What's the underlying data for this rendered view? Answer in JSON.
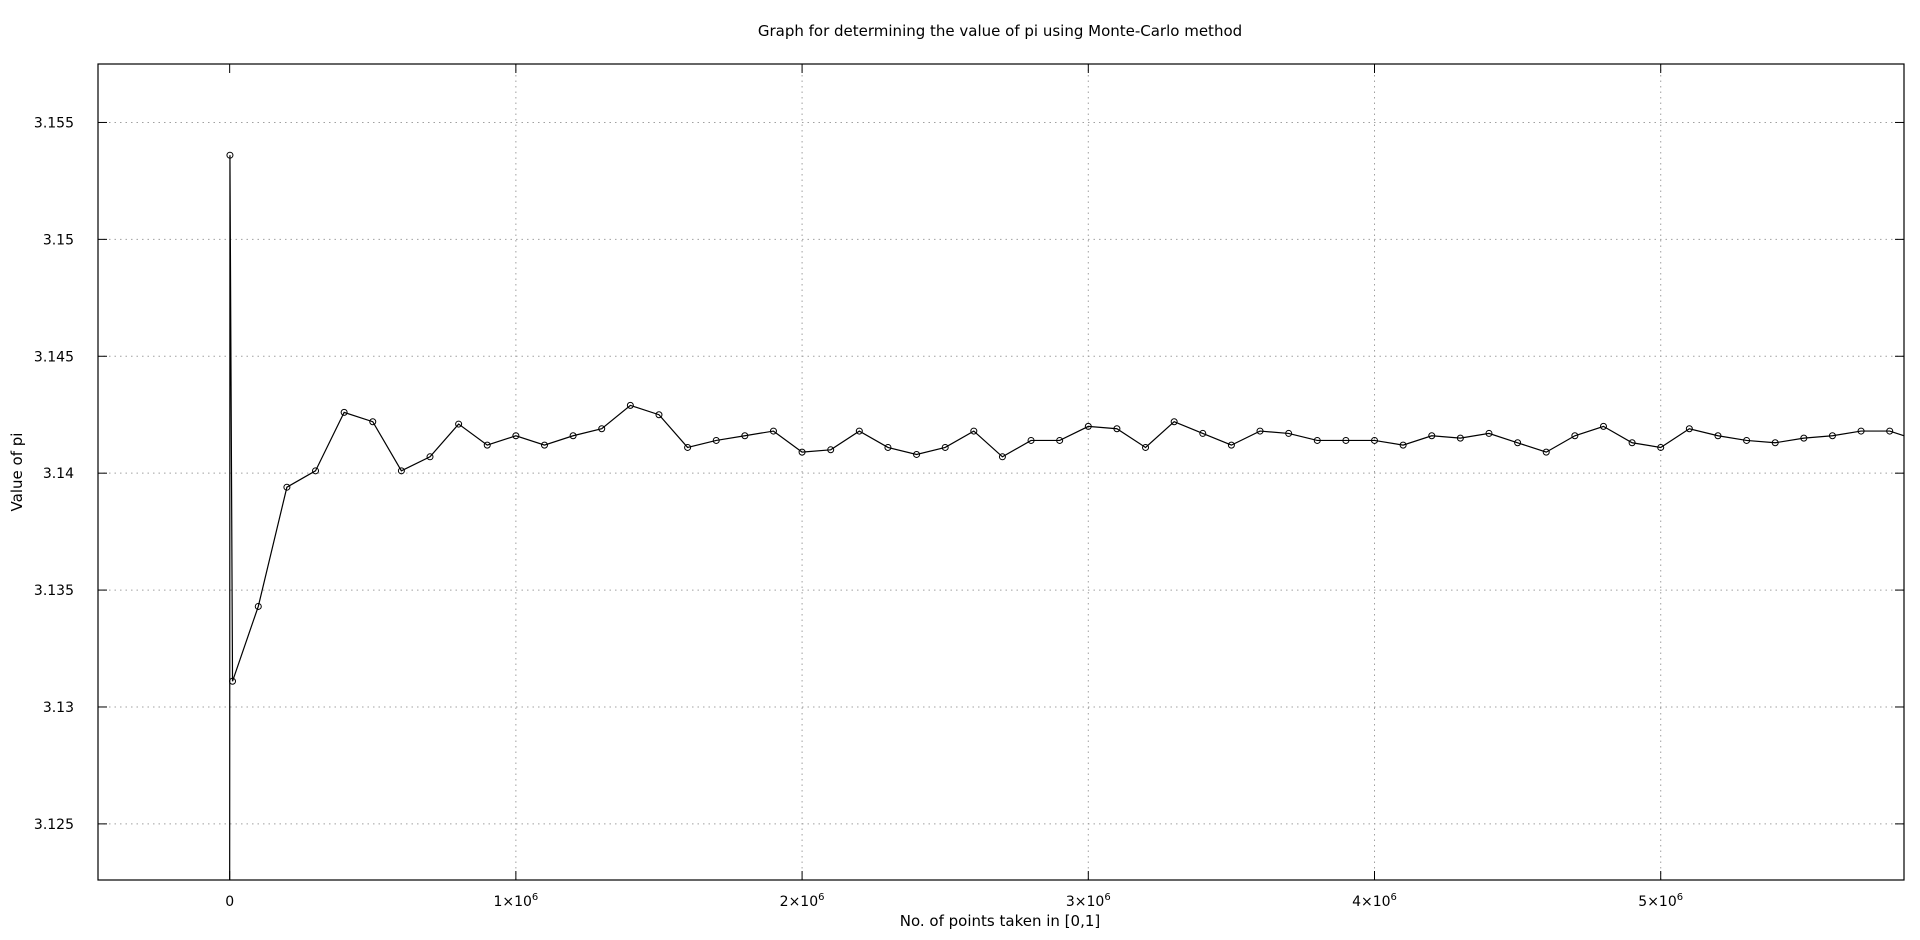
{
  "chart_data": {
    "type": "line",
    "title": "Graph for determining the value of pi using Monte-Carlo method",
    "xlabel": "No. of points taken in [0,1]",
    "ylabel": "Value of pi",
    "xlim": [
      -460000,
      5850000
    ],
    "ylim": [
      3.1226,
      3.1575
    ],
    "grid": true,
    "x_ticks": [
      {
        "value": 0,
        "label": "0"
      },
      {
        "value": 1000000,
        "label": "1×10^6"
      },
      {
        "value": 2000000,
        "label": "2×10^6"
      },
      {
        "value": 3000000,
        "label": "3×10^6"
      },
      {
        "value": 4000000,
        "label": "4×10^6"
      },
      {
        "value": 5000000,
        "label": "5×10^6"
      }
    ],
    "y_ticks": [
      {
        "value": 3.125,
        "label": "3.125"
      },
      {
        "value": 3.13,
        "label": "3.13"
      },
      {
        "value": 3.135,
        "label": "3.135"
      },
      {
        "value": 3.14,
        "label": "3.14"
      },
      {
        "value": 3.145,
        "label": "3.145"
      },
      {
        "value": 3.15,
        "label": "3.15"
      },
      {
        "value": 3.155,
        "label": "3.155"
      }
    ],
    "series": [
      {
        "color": "#000000",
        "marker": "circle",
        "x": [
          0,
          1000,
          10000,
          100000,
          200000,
          300000,
          400000,
          500000,
          600000,
          700000,
          800000,
          900000,
          1000000,
          1100000,
          1200000,
          1300000,
          1400000,
          1500000,
          1600000,
          1700000,
          1800000,
          1900000,
          2000000,
          2100000,
          2200000,
          2300000,
          2400000,
          2500000,
          2600000,
          2700000,
          2800000,
          2900000,
          3000000,
          3100000,
          3200000,
          3300000,
          3400000,
          3500000,
          3600000,
          3700000,
          3800000,
          3900000,
          4000000,
          4100000,
          4200000,
          4300000,
          4400000,
          4500000,
          4600000,
          4700000,
          4800000,
          4900000,
          5000000,
          5100000,
          5200000,
          5300000,
          5400000,
          5500000,
          5600000,
          5700000,
          5800000,
          5900000
        ],
        "y": [
          3.12,
          3.1536,
          3.1311,
          3.1343,
          3.1394,
          3.1401,
          3.1426,
          3.1422,
          3.1401,
          3.1407,
          3.1421,
          3.1412,
          3.1416,
          3.1412,
          3.1416,
          3.1419,
          3.1429,
          3.1425,
          3.1411,
          3.1414,
          3.1416,
          3.1418,
          3.1409,
          3.141,
          3.1418,
          3.1411,
          3.1408,
          3.1411,
          3.1418,
          3.1407,
          3.1414,
          3.1414,
          3.142,
          3.1419,
          3.1411,
          3.1422,
          3.1417,
          3.1412,
          3.1418,
          3.1417,
          3.1414,
          3.1414,
          3.1414,
          3.1412,
          3.1416,
          3.1415,
          3.1417,
          3.1413,
          3.1409,
          3.1416,
          3.142,
          3.1413,
          3.1411,
          3.1419,
          3.1416,
          3.1414,
          3.1413,
          3.1415,
          3.1416,
          3.1418,
          3.1418,
          3.1414
        ]
      }
    ]
  }
}
